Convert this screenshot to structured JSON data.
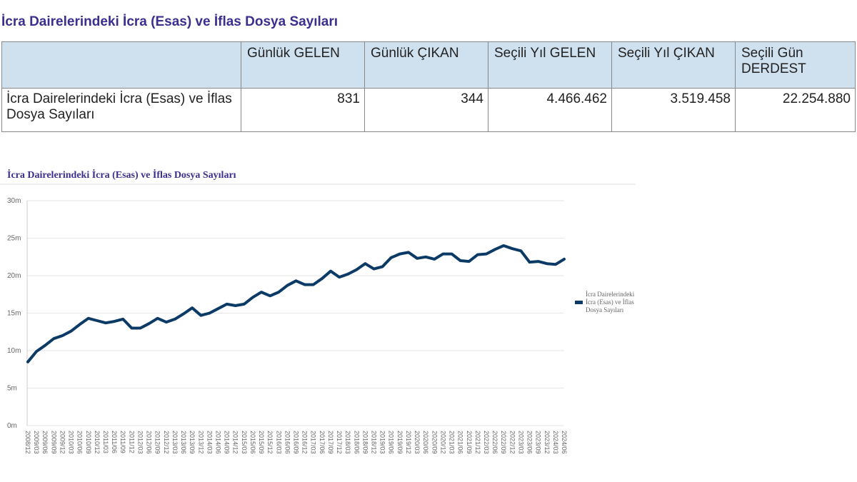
{
  "page_title": "İcra Dairelerindeki İcra (Esas) ve İflas Dosya Sayıları",
  "table": {
    "headers": [
      "",
      "Günlük GELEN",
      "Günlük ÇIKAN",
      "Seçili Yıl GELEN",
      "Seçili Yıl ÇIKAN",
      "Seçili Gün DERDEST"
    ],
    "row": [
      "İcra Dairelerindeki İcra (Esas) ve İflas Dosya Sayıları",
      "831",
      "344",
      "4.466.462",
      "3.519.458",
      "22.254.880"
    ]
  },
  "chart_data": {
    "type": "line",
    "title": "İcra Dairelerindeki İcra (Esas) ve İflas Dosya Sayıları",
    "xlabel": "",
    "ylabel": "",
    "ylim": [
      0,
      30000000
    ],
    "yticks": [
      0,
      5000000,
      10000000,
      15000000,
      20000000,
      25000000,
      30000000
    ],
    "ytick_labels": [
      "0m",
      "5m",
      "10m",
      "15m",
      "20m",
      "25m",
      "30m"
    ],
    "grid": true,
    "legend": "right",
    "color": "#0b3a66",
    "categories": [
      "2008/12",
      "2009/03",
      "2009/06",
      "2009/09",
      "2009/12",
      "2010/03",
      "2010/06",
      "2010/09",
      "2010/12",
      "2011/03",
      "2011/06",
      "2011/09",
      "2011/12",
      "2012/03",
      "2012/06",
      "2012/09",
      "2012/12",
      "2013/03",
      "2013/06",
      "2013/09",
      "2013/12",
      "2014/03",
      "2014/06",
      "2014/09",
      "2014/12",
      "2015/03",
      "2015/06",
      "2015/09",
      "2015/12",
      "2016/03",
      "2016/06",
      "2016/09",
      "2016/12",
      "2017/03",
      "2017/06",
      "2017/09",
      "2017/12",
      "2018/03",
      "2018/06",
      "2018/09",
      "2018/12",
      "2019/03",
      "2019/06",
      "2019/09",
      "2019/12",
      "2020/03",
      "2020/06",
      "2020/09",
      "2020/12",
      "2021/03",
      "2021/06",
      "2021/09",
      "2021/12",
      "2022/03",
      "2022/06",
      "2022/09",
      "2022/12",
      "2023/03",
      "2023/06",
      "2023/09",
      "2023/12",
      "2024/03",
      "2024/06"
    ],
    "series": [
      {
        "name": "İcra Dairelerindeki İcra (Esas) ve İflas Dosya Sayıları",
        "values": [
          8.5,
          9.9,
          10.7,
          11.6,
          12.0,
          12.6,
          13.5,
          14.3,
          14.0,
          13.7,
          13.9,
          14.2,
          13.0,
          13.0,
          13.6,
          14.3,
          13.8,
          14.2,
          14.9,
          15.7,
          14.7,
          15.0,
          15.6,
          16.2,
          16.0,
          16.2,
          17.1,
          17.8,
          17.3,
          17.8,
          18.7,
          19.3,
          18.8,
          18.8,
          19.6,
          20.6,
          19.8,
          20.2,
          20.8,
          21.6,
          20.9,
          21.2,
          22.4,
          22.9,
          23.1,
          22.3,
          22.5,
          22.2,
          22.9,
          22.9,
          22.0,
          21.9,
          22.8,
          22.9,
          23.5,
          24.0,
          23.6,
          23.3,
          21.8,
          21.9,
          21.6,
          21.5,
          22.2
        ],
        "unit": "million"
      }
    ]
  }
}
